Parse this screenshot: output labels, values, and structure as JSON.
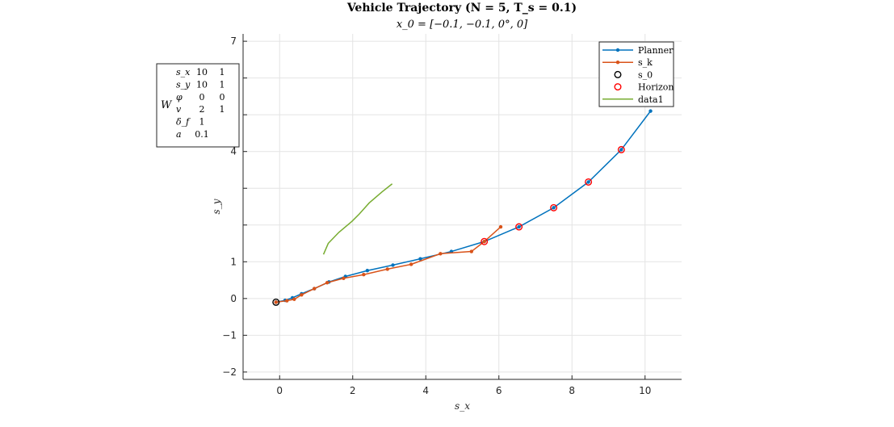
{
  "chart_data": {
    "type": "line",
    "title": "Vehicle Trajectory (N = 5, T_s = 0.1)",
    "subtitle": "x_0 = [−0.1, −0.1, 0°, 0]",
    "xlabel": "s_x",
    "ylabel": "s_y",
    "xlim": [
      -1,
      11
    ],
    "ylim": [
      -2.2,
      7.2
    ],
    "xticks": [
      0,
      2,
      4,
      6,
      8,
      10
    ],
    "yticks": [
      -2,
      -1,
      0,
      1,
      4,
      7
    ],
    "grid": true,
    "legend_position": "top-right",
    "colors": {
      "planner": "#0072BD",
      "sk": "#D95319",
      "s0": "#000000",
      "horizon": "#FF0000",
      "data1": "#77AC30",
      "axis": "#262626",
      "grid": "#e4e4e4"
    },
    "series": [
      {
        "name": "Planner",
        "kind": "line-dot",
        "x": [
          -0.1,
          0.15,
          0.35,
          0.6,
          0.95,
          1.35,
          1.8,
          2.4,
          3.1,
          3.85,
          4.7,
          5.6,
          6.55,
          7.5,
          8.45,
          9.35,
          10.15
        ],
        "y": [
          -0.1,
          -0.05,
          0.02,
          0.13,
          0.27,
          0.45,
          0.6,
          0.76,
          0.91,
          1.08,
          1.28,
          1.55,
          1.95,
          2.47,
          3.17,
          4.05,
          5.1
        ]
      },
      {
        "name": "s_k",
        "kind": "line-dot",
        "x": [
          -0.1,
          0.2,
          0.4,
          0.6,
          0.95,
          1.3,
          1.75,
          2.3,
          2.95,
          3.6,
          4.4,
          5.25,
          5.6,
          6.05
        ],
        "y": [
          -0.1,
          -0.06,
          -0.02,
          0.1,
          0.27,
          0.43,
          0.55,
          0.65,
          0.8,
          0.93,
          1.22,
          1.28,
          1.55,
          1.95
        ]
      },
      {
        "name": "s_0",
        "kind": "marker-circle",
        "x": [
          -0.1
        ],
        "y": [
          -0.1
        ]
      },
      {
        "name": "Horizon",
        "kind": "marker-circle",
        "x": [
          5.6,
          6.55,
          7.5,
          8.45,
          9.35
        ],
        "y": [
          1.55,
          1.95,
          2.47,
          3.17,
          4.05
        ]
      },
      {
        "name": "data1",
        "kind": "line",
        "x": [
          1.2,
          1.33,
          1.62,
          1.98,
          2.18,
          2.45,
          2.8,
          3.08
        ],
        "y": [
          1.2,
          1.5,
          1.8,
          2.1,
          2.3,
          2.6,
          2.9,
          3.12
        ]
      }
    ],
    "weights_table": {
      "label": "W",
      "rows": [
        {
          "name": "s_x",
          "values": [
            "10",
            "1"
          ]
        },
        {
          "name": "s_y",
          "values": [
            "10",
            "1"
          ]
        },
        {
          "name": "φ",
          "values": [
            "0",
            "0"
          ]
        },
        {
          "name": "v",
          "values": [
            "2",
            "1"
          ]
        },
        {
          "name": "δ_f",
          "values": [
            "1",
            ""
          ]
        },
        {
          "name": "a",
          "values": [
            "0.1",
            ""
          ]
        }
      ]
    }
  }
}
